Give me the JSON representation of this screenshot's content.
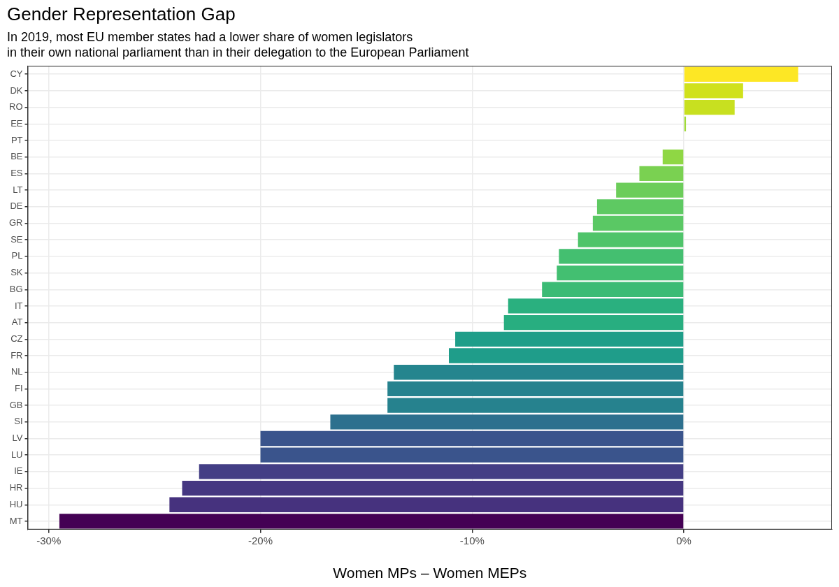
{
  "chart_data": {
    "type": "bar",
    "orientation": "horizontal",
    "title": "Gender Representation Gap",
    "subtitle": [
      "In 2019, most EU member states had a lower share of women legislators",
      "in their own national parliament than in their delegation to the European Parliament"
    ],
    "x_label": "Women MPs – Women MEPs",
    "categories": [
      "CY",
      "DK",
      "RO",
      "EE",
      "PT",
      "BE",
      "ES",
      "LT",
      "DE",
      "GR",
      "SE",
      "PL",
      "SK",
      "BG",
      "IT",
      "AT",
      "CZ",
      "FR",
      "NL",
      "FI",
      "GB",
      "SI",
      "LV",
      "LU",
      "IE",
      "HR",
      "HU",
      "MT"
    ],
    "values": [
      5.4,
      2.8,
      2.4,
      0.1,
      0,
      -1.0,
      -2.1,
      -3.2,
      -4.1,
      -4.3,
      -5.0,
      -5.9,
      -6.0,
      -6.7,
      -8.3,
      -8.5,
      -10.8,
      -11.1,
      -13.7,
      -14.0,
      -14.0,
      -16.7,
      -20.0,
      -20.0,
      -22.9,
      -23.7,
      -24.3,
      -29.5
    ],
    "colors": [
      "#fde725",
      "#d0e11c",
      "#c8e020",
      "#a0da39",
      "#9fda3a",
      "#8fd744",
      "#7ad151",
      "#6ccd5a",
      "#5ec962",
      "#5ac864",
      "#4fc46a",
      "#44bf70",
      "#43bf71",
      "#3bbb75",
      "#2ab07f",
      "#28ae80",
      "#1f9e89",
      "#1f9d8a",
      "#25858e",
      "#26828e",
      "#26828e",
      "#2d708e",
      "#3a548c",
      "#3a548c",
      "#433e85",
      "#453781",
      "#46327e",
      "#440154"
    ],
    "xlim": [
      -31,
      7
    ],
    "xticks": [
      {
        "value": -30,
        "label": "-30%"
      },
      {
        "value": -20,
        "label": "-20%"
      },
      {
        "value": -10,
        "label": "-10%"
      },
      {
        "value": 0,
        "label": "0%"
      }
    ],
    "grid": true
  }
}
